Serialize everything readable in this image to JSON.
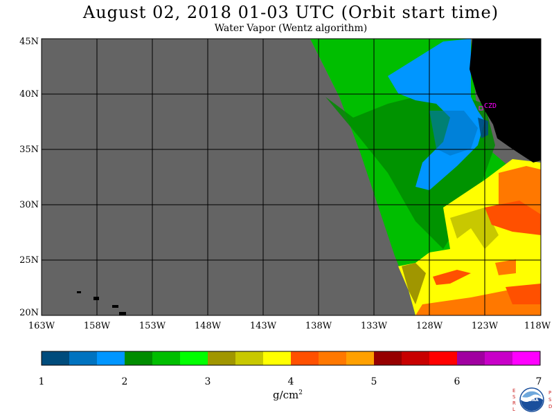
{
  "title": "August 02, 2018  01-03 UTC  (Orbit start time)",
  "subtitle": "Water Vapor (Wentz algorithm)",
  "map": {
    "lat_labels": [
      "45N",
      "40N",
      "35N",
      "30N",
      "25N",
      "20N"
    ],
    "lon_labels": [
      "163W",
      "158W",
      "153W",
      "148W",
      "143W",
      "138W",
      "133W",
      "128W",
      "123W",
      "118W"
    ],
    "station_label": "CZD",
    "colors": {
      "no_data": "#646464",
      "land": "#000000",
      "station": "#ff00ff"
    }
  },
  "colorbar": {
    "labels": [
      "1",
      "2",
      "3",
      "4",
      "5",
      "6",
      "7"
    ],
    "unit_base": "g/cm",
    "unit_exp": "2",
    "colors": [
      "#004c7c",
      "#0073c0",
      "#0096ff",
      "#008c00",
      "#00be00",
      "#00ff00",
      "#a09600",
      "#c8c800",
      "#ffff00",
      "#ff5000",
      "#ff7800",
      "#ffa000",
      "#960000",
      "#c80000",
      "#ff0000",
      "#a000a0",
      "#c800c8",
      "#ff00ff"
    ]
  },
  "logo": {
    "left_letters": "ESRL",
    "right_letters": "PSD",
    "center_text": "NOAA"
  }
}
